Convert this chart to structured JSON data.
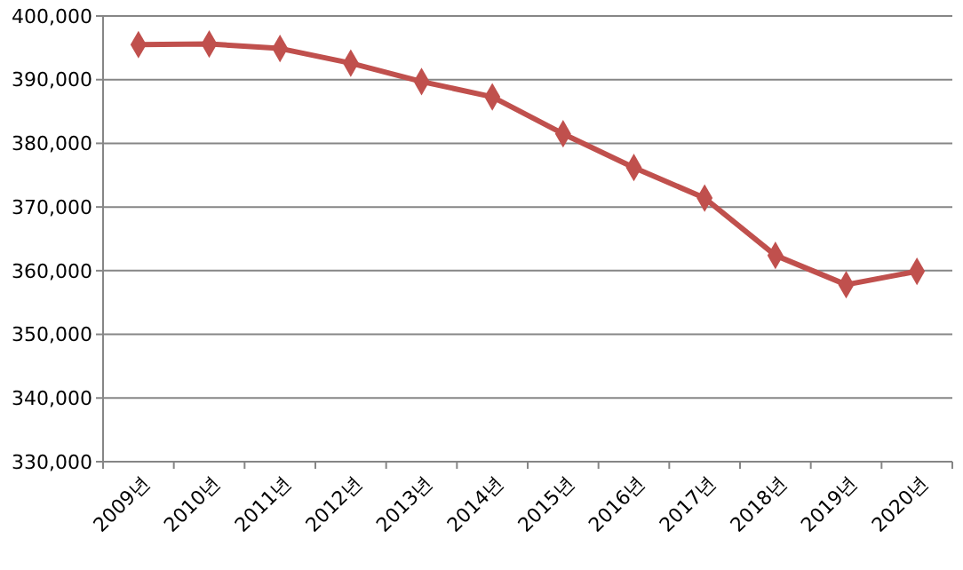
{
  "chart_data": {
    "type": "line",
    "categories": [
      "2009년",
      "2010년",
      "2011년",
      "2012년",
      "2013년",
      "2014년",
      "2015년",
      "2016년",
      "2017년",
      "2018년",
      "2019년",
      "2020년"
    ],
    "series": [
      {
        "color": "#c0504d",
        "values": [
          395500,
          395600,
          394900,
          392600,
          389700,
          387300,
          381500,
          376200,
          371400,
          362400,
          357800,
          359900
        ]
      }
    ],
    "ylim": [
      330000,
      400000
    ],
    "yticks": [
      {
        "value": 330000,
        "label": "330,000"
      },
      {
        "value": 340000,
        "label": "340,000"
      },
      {
        "value": 350000,
        "label": "350,000"
      },
      {
        "value": 360000,
        "label": "360,000"
      },
      {
        "value": 370000,
        "label": "370,000"
      },
      {
        "value": 380000,
        "label": "380,000"
      },
      {
        "value": 390000,
        "label": "390,000"
      },
      {
        "value": 400000,
        "label": "400,000"
      }
    ],
    "grid": "y",
    "marker": "diamond",
    "line_style": "solid"
  }
}
